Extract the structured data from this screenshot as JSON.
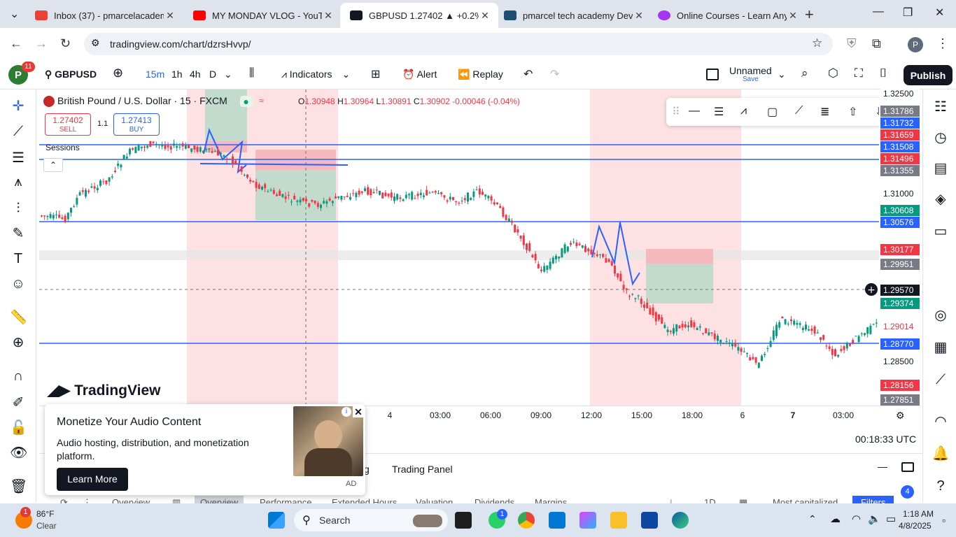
{
  "browser": {
    "tabs": [
      {
        "title": "Inbox (37) - pmarcelacadem",
        "color": "#ea4335"
      },
      {
        "title": "MY MONDAY VLOG - YouTube",
        "color": "#ff0000"
      },
      {
        "title": "GBPUSD 1.27402 ▲ +0.2% U",
        "color": "#131722"
      },
      {
        "title": "pmarcel tech academy Dev",
        "color": "#1b4f72"
      },
      {
        "title": "Online Courses - Learn Anyt",
        "color": "#a435f0"
      }
    ],
    "url": "tradingview.com/chart/dzrsHvvp/",
    "profile_initial": "P"
  },
  "toolbar": {
    "avatar": "P",
    "badge": "11",
    "symbol": "GBPUSD",
    "intervals": [
      "15m",
      "1h",
      "4h",
      "D"
    ],
    "indicators": "Indicators",
    "alert": "Alert",
    "replay": "Replay",
    "layout_name": "Unnamed",
    "layout_save": "Save",
    "publish": "Publish"
  },
  "legend": {
    "title": "British Pound / U.S. Dollar · 15 · FXCM",
    "open_label": "O",
    "open": "1.30948",
    "high_label": "H",
    "high": "1.30964",
    "low_label": "L",
    "low": "1.30891",
    "close_label": "C",
    "close": "1.30902",
    "change": "-0.00046 (-0.04%)",
    "sell_price": "1.27402",
    "sell_label": "SELL",
    "spread": "1.1",
    "buy_price": "1.27413",
    "buy_label": "BUY",
    "sessions": "Sessions"
  },
  "price_labels": [
    {
      "text": "1.32500",
      "bg": "#ffffff",
      "fg": "#131722"
    },
    {
      "text": "1.31786",
      "bg": "#787b86",
      "fg": "#ffffff"
    },
    {
      "text": "1.31732",
      "bg": "#2962ff",
      "fg": "#ffffff"
    },
    {
      "text": "1.31659",
      "bg": "#f23645",
      "fg": "#ffffff"
    },
    {
      "text": "1.31508",
      "bg": "#2962ff",
      "fg": "#ffffff"
    },
    {
      "text": "1.31496",
      "bg": "#f23645",
      "fg": "#ffffff"
    },
    {
      "text": "1.31355",
      "bg": "#787b86",
      "fg": "#ffffff"
    },
    {
      "text": "1.31000",
      "bg": "#ffffff",
      "fg": "#131722"
    },
    {
      "text": "1.30608",
      "bg": "#089981",
      "fg": "#ffffff"
    },
    {
      "text": "1.30576",
      "bg": "#2962ff",
      "fg": "#ffffff"
    },
    {
      "text": "1.30177",
      "bg": "#f23645",
      "fg": "#ffffff"
    },
    {
      "text": "1.29951",
      "bg": "#787b86",
      "fg": "#ffffff"
    },
    {
      "text": "1.29570",
      "bg": "#131722",
      "fg": "#ffffff"
    },
    {
      "text": "1.29374",
      "bg": "#089981",
      "fg": "#ffffff"
    },
    {
      "text": "1.29014",
      "bg": "#ffffff",
      "fg": "#f23645"
    },
    {
      "text": "1.28770",
      "bg": "#2962ff",
      "fg": "#ffffff"
    },
    {
      "text": "1.28500",
      "bg": "#ffffff",
      "fg": "#131722"
    },
    {
      "text": "1.28156",
      "bg": "#f23645",
      "fg": "#ffffff"
    },
    {
      "text": "1.27851",
      "bg": "#787b86",
      "fg": "#ffffff"
    }
  ],
  "time_labels": [
    "4",
    "03:00",
    "06:00",
    "09:00",
    "12:00",
    "15:00",
    "18:00",
    "6",
    "7",
    "03:00"
  ],
  "utc_time": "00:18:33 UTC",
  "tradingview_logo": "TradingView",
  "ad": {
    "title": "Monetize Your Audio Content",
    "body": "Audio hosting, distribution, and monetization platform.",
    "cta": "Learn More",
    "badge": "AD"
  },
  "bottom_panel": {
    "tabs": [
      "g",
      "Trading Panel"
    ],
    "screener": [
      "Overview",
      "Overview",
      "Performance",
      "Extended Hours",
      "Valuation",
      "Dividends",
      "Margins"
    ],
    "interval": "1D",
    "sort": "Most capitalized",
    "filters": "Filters",
    "filters_count": "4"
  },
  "taskbar": {
    "temp": "86°F",
    "weather": "Clear",
    "weather_badge": "1",
    "search": "Search",
    "time": "1:18 AM",
    "date": "4/8/2025",
    "whatsapp_badge": "1"
  }
}
